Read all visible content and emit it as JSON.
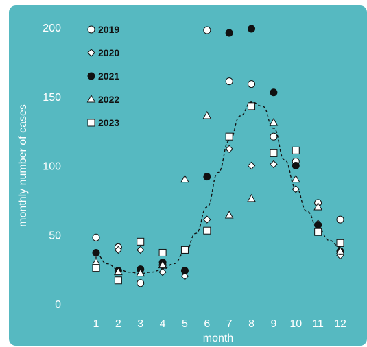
{
  "chart_data": {
    "type": "scatter",
    "xlabel": "month",
    "ylabel": "monthly number of cases",
    "xlim": [
      0.5,
      12.5
    ],
    "ylim": [
      0,
      205
    ],
    "x_ticks": [
      1,
      2,
      3,
      4,
      5,
      6,
      7,
      8,
      9,
      10,
      11,
      12
    ],
    "y_ticks": [
      0,
      50,
      100,
      150,
      200
    ],
    "grid": false,
    "legend_position": "top-left",
    "background_color": "#56b9c1",
    "series": [
      {
        "name": "2019",
        "marker": "circle-open",
        "x": [
          1,
          2,
          3,
          4,
          5,
          6,
          7,
          8,
          9,
          10,
          11,
          12
        ],
        "y": [
          48,
          41,
          15,
          28,
          39,
          198,
          161,
          159,
          121,
          103,
          73,
          61
        ]
      },
      {
        "name": "2020",
        "marker": "diamond-open",
        "x": [
          1,
          2,
          3,
          4,
          5,
          6,
          7,
          8,
          9,
          10,
          11,
          12
        ],
        "y": [
          36,
          39,
          39,
          23,
          20,
          61,
          112,
          100,
          101,
          83,
          58,
          35
        ]
      },
      {
        "name": "2021",
        "marker": "circle-filled",
        "x": [
          1,
          2,
          3,
          4,
          5,
          6,
          7,
          8,
          9,
          10,
          11,
          12
        ],
        "y": [
          37,
          24,
          25,
          30,
          24,
          92,
          196,
          199,
          153,
          100,
          57,
          38
        ]
      },
      {
        "name": "2022",
        "marker": "triangle-open",
        "x": [
          1,
          2,
          3,
          4,
          5,
          6,
          7,
          8,
          9,
          10,
          11,
          12
        ],
        "y": [
          30,
          23,
          22,
          28,
          90,
          136,
          64,
          76,
          131,
          90,
          70,
          38
        ]
      },
      {
        "name": "2023",
        "marker": "square-open",
        "x": [
          1,
          2,
          3,
          4,
          5,
          6,
          7,
          8,
          9,
          10,
          11,
          12
        ],
        "y": [
          26,
          17,
          45,
          37,
          39,
          53,
          121,
          143,
          109,
          111,
          52,
          44
        ]
      }
    ],
    "trend_line": {
      "style": "dashed",
      "x": [
        1,
        1.5,
        2,
        2.5,
        3,
        3.5,
        4,
        4.5,
        5,
        5.5,
        6,
        6.5,
        7,
        7.5,
        8,
        8.5,
        9,
        9.5,
        10,
        10.5,
        11,
        11.5,
        12
      ],
      "y": [
        36,
        29,
        25,
        23,
        22,
        23,
        25,
        29,
        37,
        51,
        70,
        95,
        118,
        136,
        146,
        143,
        127,
        104,
        84,
        67,
        55,
        46,
        41
      ]
    }
  }
}
